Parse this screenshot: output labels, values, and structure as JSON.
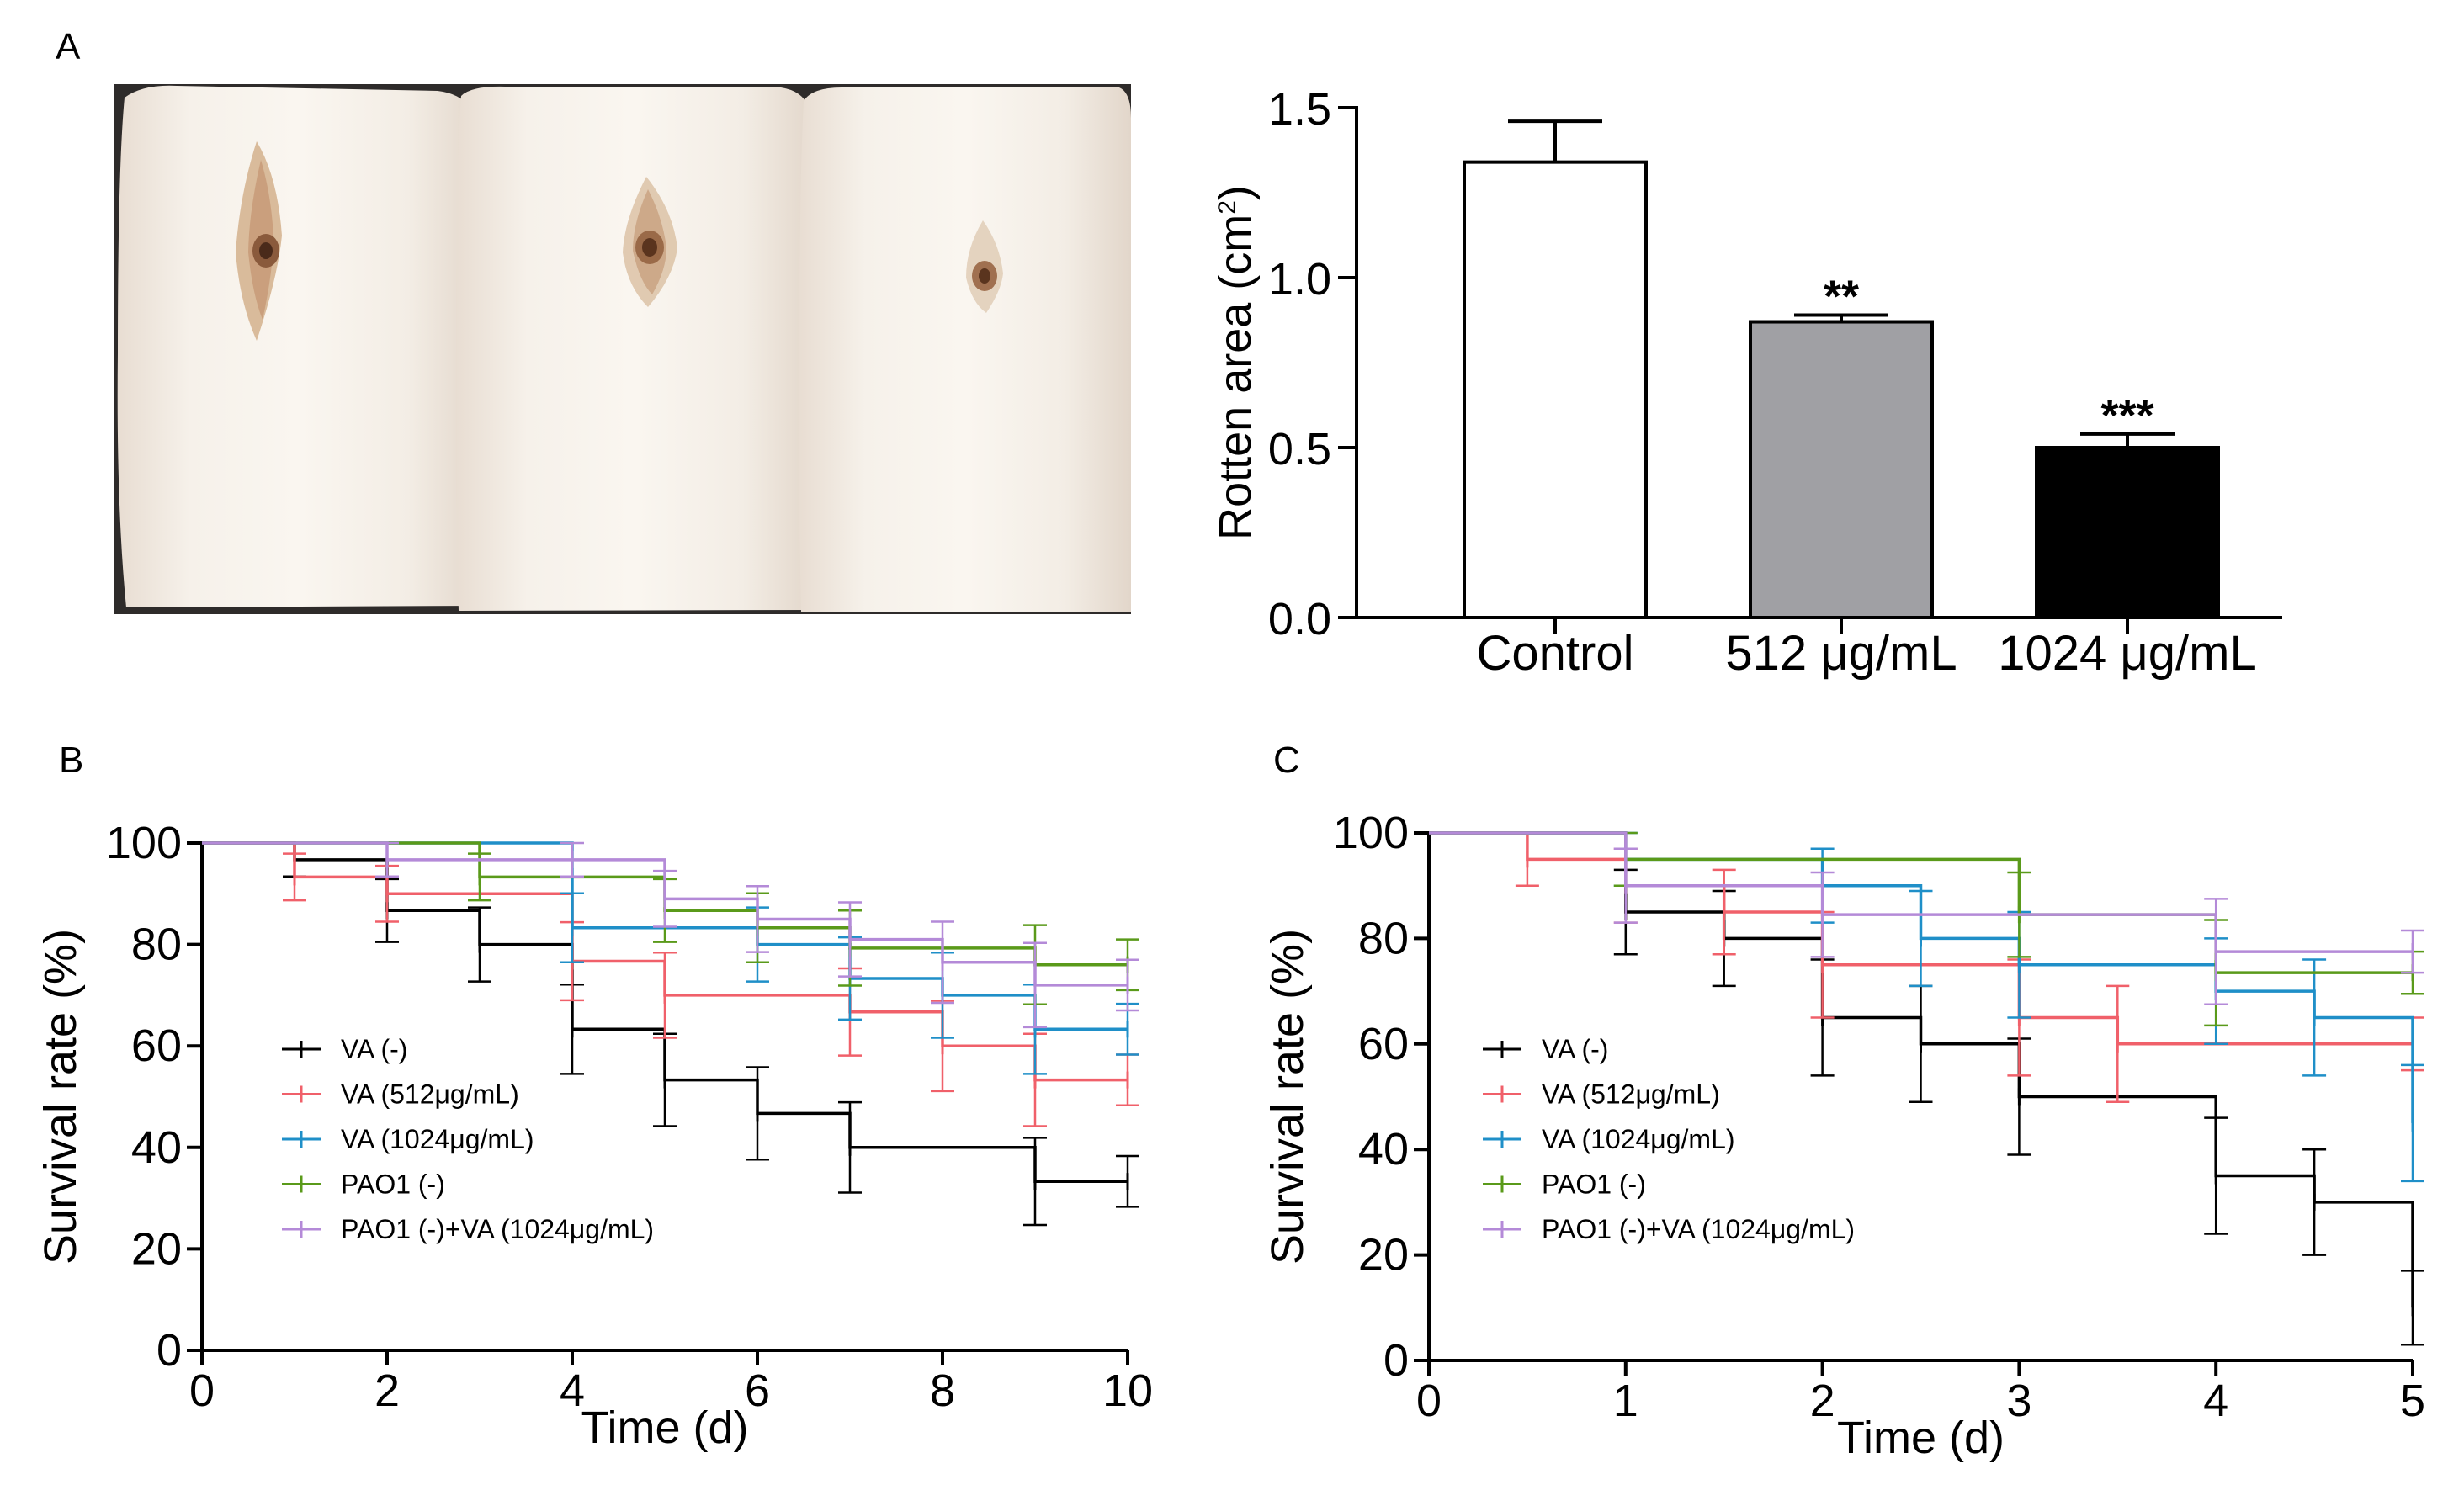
{
  "panels": {
    "a": "A",
    "b": "B",
    "c": "C"
  },
  "photo": {
    "name": "potato slices photo"
  },
  "colors": {
    "va": "#000000",
    "va512": "#f0606a",
    "va1024": "#1f8fc8",
    "pao1": "#5a9a1a",
    "combo": "#b48ad8",
    "bar_control": "#ffffff",
    "bar_512": "#a0a0a4",
    "bar_1024": "#000000"
  },
  "chart_data": [
    {
      "id": "rotten",
      "type": "bar",
      "title": "",
      "xlabel": "",
      "ylabel": "Rotten area (cm²)",
      "ylabel_main": "Rotten area (cm",
      "ylabel_sup": "2",
      "ylabel_close": ")",
      "ylim": [
        0,
        1.5
      ],
      "yticks": [
        "0.0",
        "0.5",
        "1.0",
        "1.5"
      ],
      "ytick_values": [
        0,
        0.5,
        1.0,
        1.5
      ],
      "categories": [
        "Control",
        "512 μg/mL",
        "1024 μg/mL"
      ],
      "values": [
        1.34,
        0.87,
        0.5
      ],
      "errors": [
        0.12,
        0.02,
        0.04
      ],
      "significance": [
        "",
        "**",
        "***"
      ]
    },
    {
      "id": "survival_b",
      "type": "line",
      "step": true,
      "xlabel": "Time (d)",
      "ylabel": "Survival rate (%)",
      "xlim": [
        0,
        10
      ],
      "ylim": [
        0,
        100
      ],
      "xticks": [
        "0",
        "2",
        "4",
        "6",
        "8",
        "10"
      ],
      "xtick_values": [
        0,
        2,
        4,
        6,
        8,
        10
      ],
      "yticks": [
        "0",
        "20",
        "40",
        "60",
        "80",
        "100"
      ],
      "ytick_values": [
        0,
        20,
        40,
        60,
        80,
        100
      ],
      "legend": [
        "VA (-)",
        "VA (512μg/mL)",
        "VA (1024μg/mL)",
        "PAO1 (-)",
        "PAO1 (-)+VA (1024μg/mL)"
      ],
      "series": [
        {
          "name": "VA (-)",
          "color_key": "va",
          "x": [
            0,
            1,
            2,
            3,
            4,
            5,
            6,
            7,
            9,
            10
          ],
          "y": [
            100,
            96.7,
            86.7,
            80,
            63.3,
            53.3,
            46.7,
            40,
            33.3,
            33.3
          ],
          "err": [
            0,
            3.3,
            6.2,
            7.3,
            8.8,
            9.1,
            9.1,
            8.9,
            8.6,
            5
          ]
        },
        {
          "name": "VA (512μg/mL)",
          "color_key": "va512",
          "x": [
            0,
            1,
            2,
            4,
            5,
            7,
            8,
            9,
            10
          ],
          "y": [
            100,
            93.3,
            90,
            76.7,
            70,
            66.7,
            60,
            53.3,
            53.3
          ],
          "err": [
            0,
            4.6,
            5.5,
            7.7,
            8.4,
            8.6,
            8.9,
            9.1,
            5
          ]
        },
        {
          "name": "VA (1024μg/mL)",
          "color_key": "va1024",
          "x": [
            0,
            4,
            6,
            7,
            8,
            9,
            10
          ],
          "y": [
            100,
            83.3,
            80,
            73.3,
            70,
            63.3,
            63.3
          ],
          "err": [
            0,
            6.8,
            7.3,
            8.1,
            8.4,
            8.8,
            5
          ]
        },
        {
          "name": "PAO1 (-)",
          "color_key": "pao1",
          "x": [
            0,
            3,
            5,
            6,
            7,
            9,
            10
          ],
          "y": [
            100,
            93.3,
            86.7,
            83.3,
            79.3,
            76,
            76
          ],
          "err": [
            0,
            4.6,
            6.2,
            6.8,
            7.4,
            7.8,
            5
          ]
        },
        {
          "name": "PAO1 (-)+VA (1024μg/mL)",
          "color_key": "combo",
          "x": [
            0,
            2,
            4,
            5,
            6,
            7,
            8,
            9,
            10
          ],
          "y": [
            100,
            96.7,
            96.7,
            89,
            85,
            81,
            76.5,
            72,
            72
          ],
          "err": [
            0,
            3.3,
            3.3,
            5.5,
            6.5,
            7.3,
            8,
            8.3,
            5
          ]
        }
      ]
    },
    {
      "id": "survival_c",
      "type": "line",
      "step": true,
      "xlabel": "Time (d)",
      "ylabel": "Survival rate (%)",
      "xlim": [
        0,
        5
      ],
      "ylim": [
        0,
        100
      ],
      "xticks": [
        "0",
        "1",
        "2",
        "3",
        "4",
        "5"
      ],
      "xtick_values": [
        0,
        1,
        2,
        3,
        4,
        5
      ],
      "yticks": [
        "0",
        "20",
        "40",
        "60",
        "80",
        "100"
      ],
      "ytick_values": [
        0,
        20,
        40,
        60,
        80,
        100
      ],
      "legend": [
        "VA (-)",
        "VA (512μg/mL)",
        "VA (1024μg/mL)",
        "PAO1 (-)",
        "PAO1 (-)+VA (1024μg/mL)"
      ],
      "series": [
        {
          "name": "VA (-)",
          "color_key": "va",
          "x": [
            0,
            1,
            1.5,
            2,
            2.5,
            3,
            4,
            4.5,
            5
          ],
          "y": [
            100,
            85,
            80,
            65,
            60,
            50,
            35,
            30,
            10
          ],
          "err": [
            0,
            8,
            9,
            11,
            11,
            11,
            11,
            10,
            7
          ]
        },
        {
          "name": "VA (512μg/mL)",
          "color_key": "va512",
          "x": [
            0,
            0.5,
            1,
            1.5,
            2,
            3,
            3.5,
            5
          ],
          "y": [
            100,
            95,
            90,
            85,
            75,
            65,
            60,
            60
          ],
          "err": [
            0,
            5,
            7,
            8,
            10,
            11,
            11,
            5
          ]
        },
        {
          "name": "VA (1024μg/mL)",
          "color_key": "va1024",
          "x": [
            0,
            1,
            2,
            2.5,
            3,
            4,
            4.5,
            5
          ],
          "y": [
            100,
            95,
            90,
            80,
            75,
            70,
            65,
            45
          ],
          "err": [
            0,
            5,
            7,
            9,
            10,
            10,
            11,
            11
          ]
        },
        {
          "name": "PAO1 (-)",
          "color_key": "pao1",
          "x": [
            0,
            1,
            3,
            4,
            5
          ],
          "y": [
            100,
            95,
            84.5,
            73.5,
            73.5
          ],
          "err": [
            0,
            5,
            8,
            10,
            4
          ]
        },
        {
          "name": "PAO1 (-)+VA (1024μg/mL)",
          "color_key": "combo",
          "x": [
            0,
            1,
            2,
            4,
            5
          ],
          "y": [
            100,
            90,
            84.5,
            77.5,
            77.5
          ],
          "err": [
            0,
            7,
            8,
            10,
            4
          ]
        }
      ]
    }
  ]
}
